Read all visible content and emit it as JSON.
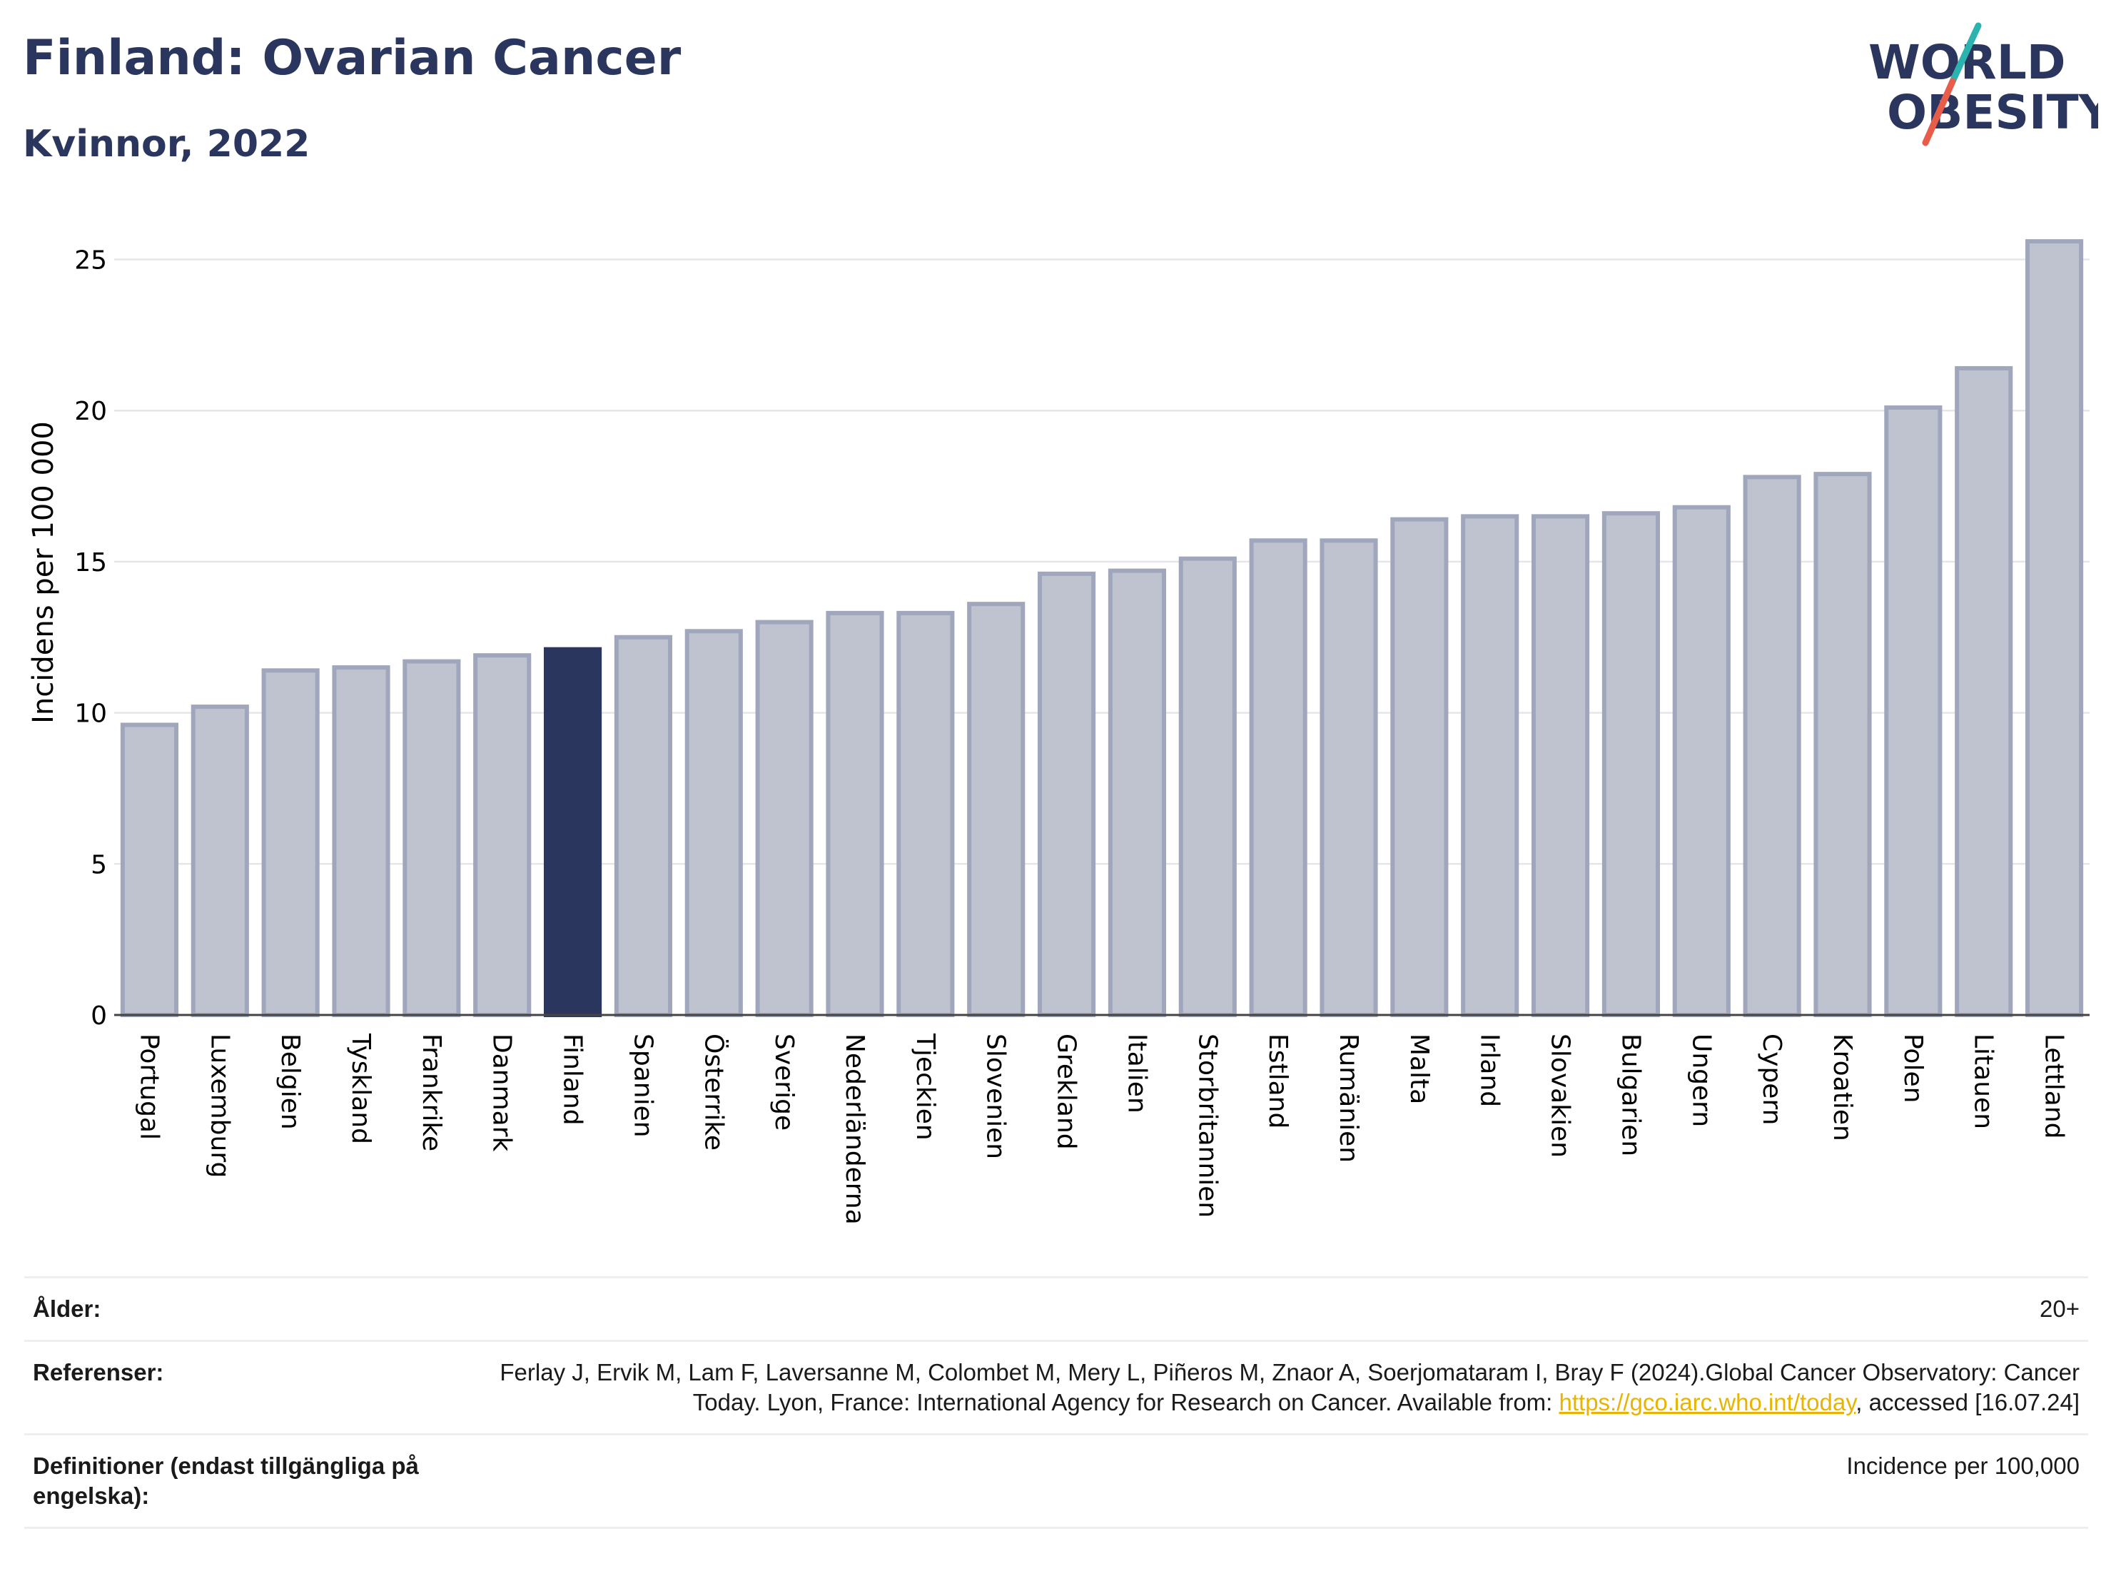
{
  "header": {
    "title": "Finland: Ovarian Cancer",
    "subtitle": "Kvinnor, 2022"
  },
  "logo": {
    "line1": "WORLD",
    "line2": "OBESITY",
    "slash_colors": [
      "#e85d4a",
      "#2bb3b0"
    ]
  },
  "colors": {
    "bar_default": "#bfc3d0",
    "bar_border": "#a0a6bb",
    "bar_highlight": "#2b365f",
    "title": "#2b365f",
    "link": "#e8b400"
  },
  "chart_data": {
    "type": "bar",
    "ylabel": "Incidens per 100 000",
    "xlabel": "",
    "ylim": [
      0,
      26.5
    ],
    "yticks": [
      0,
      5,
      10,
      15,
      20,
      25
    ],
    "grid": true,
    "highlight": "Finland",
    "categories": [
      "Portugal",
      "Luxemburg",
      "Belgien",
      "Tyskland",
      "Frankrike",
      "Danmark",
      "Finland",
      "Spanien",
      "Österrike",
      "Sverige",
      "Nederländerna",
      "Tjeckien",
      "Slovenien",
      "Grekland",
      "Italien",
      "Storbritannien",
      "Estland",
      "Rumänien",
      "Malta",
      "Irland",
      "Slovakien",
      "Bulgarien",
      "Ungern",
      "Cypern",
      "Kroatien",
      "Polen",
      "Litauen",
      "Lettland"
    ],
    "values": [
      9.6,
      10.2,
      11.4,
      11.5,
      11.7,
      11.9,
      12.1,
      12.5,
      12.7,
      13.0,
      13.3,
      13.3,
      13.6,
      14.6,
      14.7,
      15.1,
      15.7,
      15.7,
      16.4,
      16.5,
      16.5,
      16.6,
      16.8,
      17.8,
      17.9,
      20.1,
      21.4,
      25.6
    ]
  },
  "info": {
    "age_label": "Ålder:",
    "age_value": "20+",
    "ref_label": "Referenser:",
    "ref_text_before": "Ferlay J, Ervik M, Lam F, Laversanne M, Colombet M, Mery L, Piñeros M, Znaor A, Soerjomataram I, Bray F (2024).Global Cancer Observatory: Cancer Today. Lyon, France: International Agency for Research on Cancer. Available from: ",
    "ref_link": "https://gco.iarc.who.int/today",
    "ref_text_after": ", accessed [16.07.24]",
    "def_label": "Definitioner (endast tillgängliga på engelska):",
    "def_value": "Incidence per 100,000"
  }
}
